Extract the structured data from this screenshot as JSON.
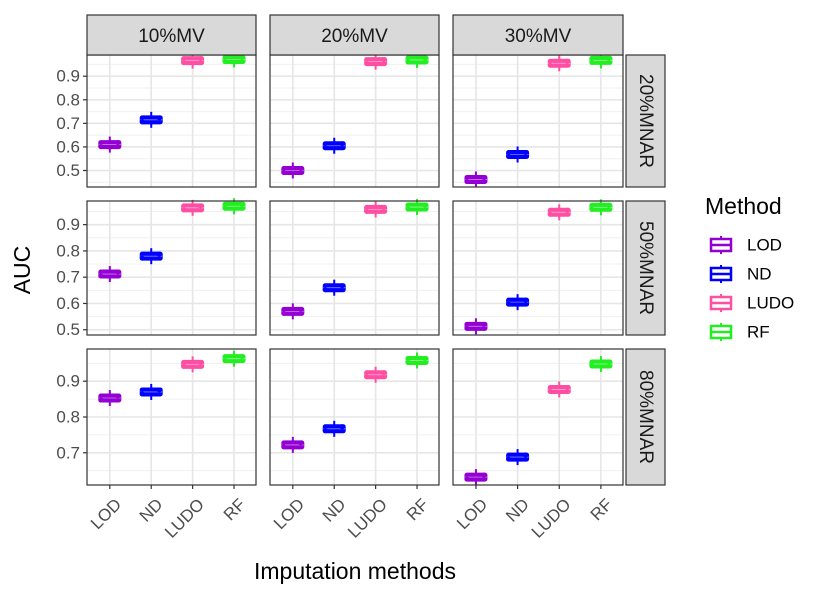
{
  "chart_data": {
    "type": "boxplot",
    "xlabel": "Imputation methods",
    "ylabel": "AUC",
    "categories": [
      "LOD",
      "ND",
      "LUDO",
      "RF"
    ],
    "col_facets": [
      "10%MV",
      "20%MV",
      "30%MV"
    ],
    "row_facets": [
      "20%MNAR",
      "50%MNAR",
      "80%MNAR"
    ],
    "row_y_ranges": [
      [
        0.43,
        0.99
      ],
      [
        0.48,
        0.99
      ],
      [
        0.61,
        0.99
      ]
    ],
    "row_y_ticks": [
      [
        0.5,
        0.6,
        0.7,
        0.8,
        0.9
      ],
      [
        0.5,
        0.6,
        0.7,
        0.8,
        0.9
      ],
      [
        0.7,
        0.8,
        0.9
      ]
    ],
    "grid": true,
    "legend": {
      "title": "Method",
      "position": "right",
      "entries": [
        "LOD",
        "ND",
        "LUDO",
        "RF"
      ]
    },
    "colors": {
      "LOD": "#9400D3",
      "ND": "#0000FF",
      "LUDO": "#FF4FA3",
      "RF": "#22EE22"
    },
    "panels": [
      [
        {
          "LOD": 0.61,
          "ND": 0.715,
          "LUDO": 0.966,
          "RF": 0.971
        },
        {
          "LOD": 0.5,
          "ND": 0.605,
          "LUDO": 0.962,
          "RF": 0.969
        },
        {
          "LOD": 0.462,
          "ND": 0.568,
          "LUDO": 0.955,
          "RF": 0.967
        }
      ],
      [
        {
          "LOD": 0.712,
          "ND": 0.78,
          "LUDO": 0.964,
          "RF": 0.97
        },
        {
          "LOD": 0.57,
          "ND": 0.66,
          "LUDO": 0.958,
          "RF": 0.967
        },
        {
          "LOD": 0.513,
          "ND": 0.605,
          "LUDO": 0.947,
          "RF": 0.966
        }
      ],
      [
        {
          "LOD": 0.853,
          "ND": 0.87,
          "LUDO": 0.947,
          "RF": 0.963
        },
        {
          "LOD": 0.722,
          "ND": 0.767,
          "LUDO": 0.918,
          "RF": 0.958
        },
        {
          "LOD": 0.632,
          "ND": 0.688,
          "LUDO": 0.877,
          "RF": 0.948
        }
      ]
    ]
  }
}
